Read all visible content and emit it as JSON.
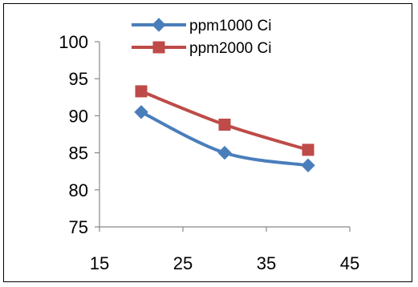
{
  "chart_data": {
    "type": "line",
    "x": [
      20,
      30,
      40
    ],
    "xlim": [
      15,
      45
    ],
    "xticks": [
      15,
      25,
      35,
      45
    ],
    "ylim": [
      75,
      100
    ],
    "yticks": [
      75,
      80,
      85,
      90,
      95,
      100
    ],
    "grid": false,
    "legend_position": "top-center",
    "series": [
      {
        "name": "ppm1000 Ci",
        "values": [
          90.5,
          85.0,
          83.3
        ],
        "color": "#4a7ebb",
        "marker": "diamond"
      },
      {
        "name": "ppm2000 Ci",
        "values": [
          93.3,
          88.8,
          85.4
        ],
        "color": "#be4b48",
        "marker": "square"
      }
    ]
  }
}
